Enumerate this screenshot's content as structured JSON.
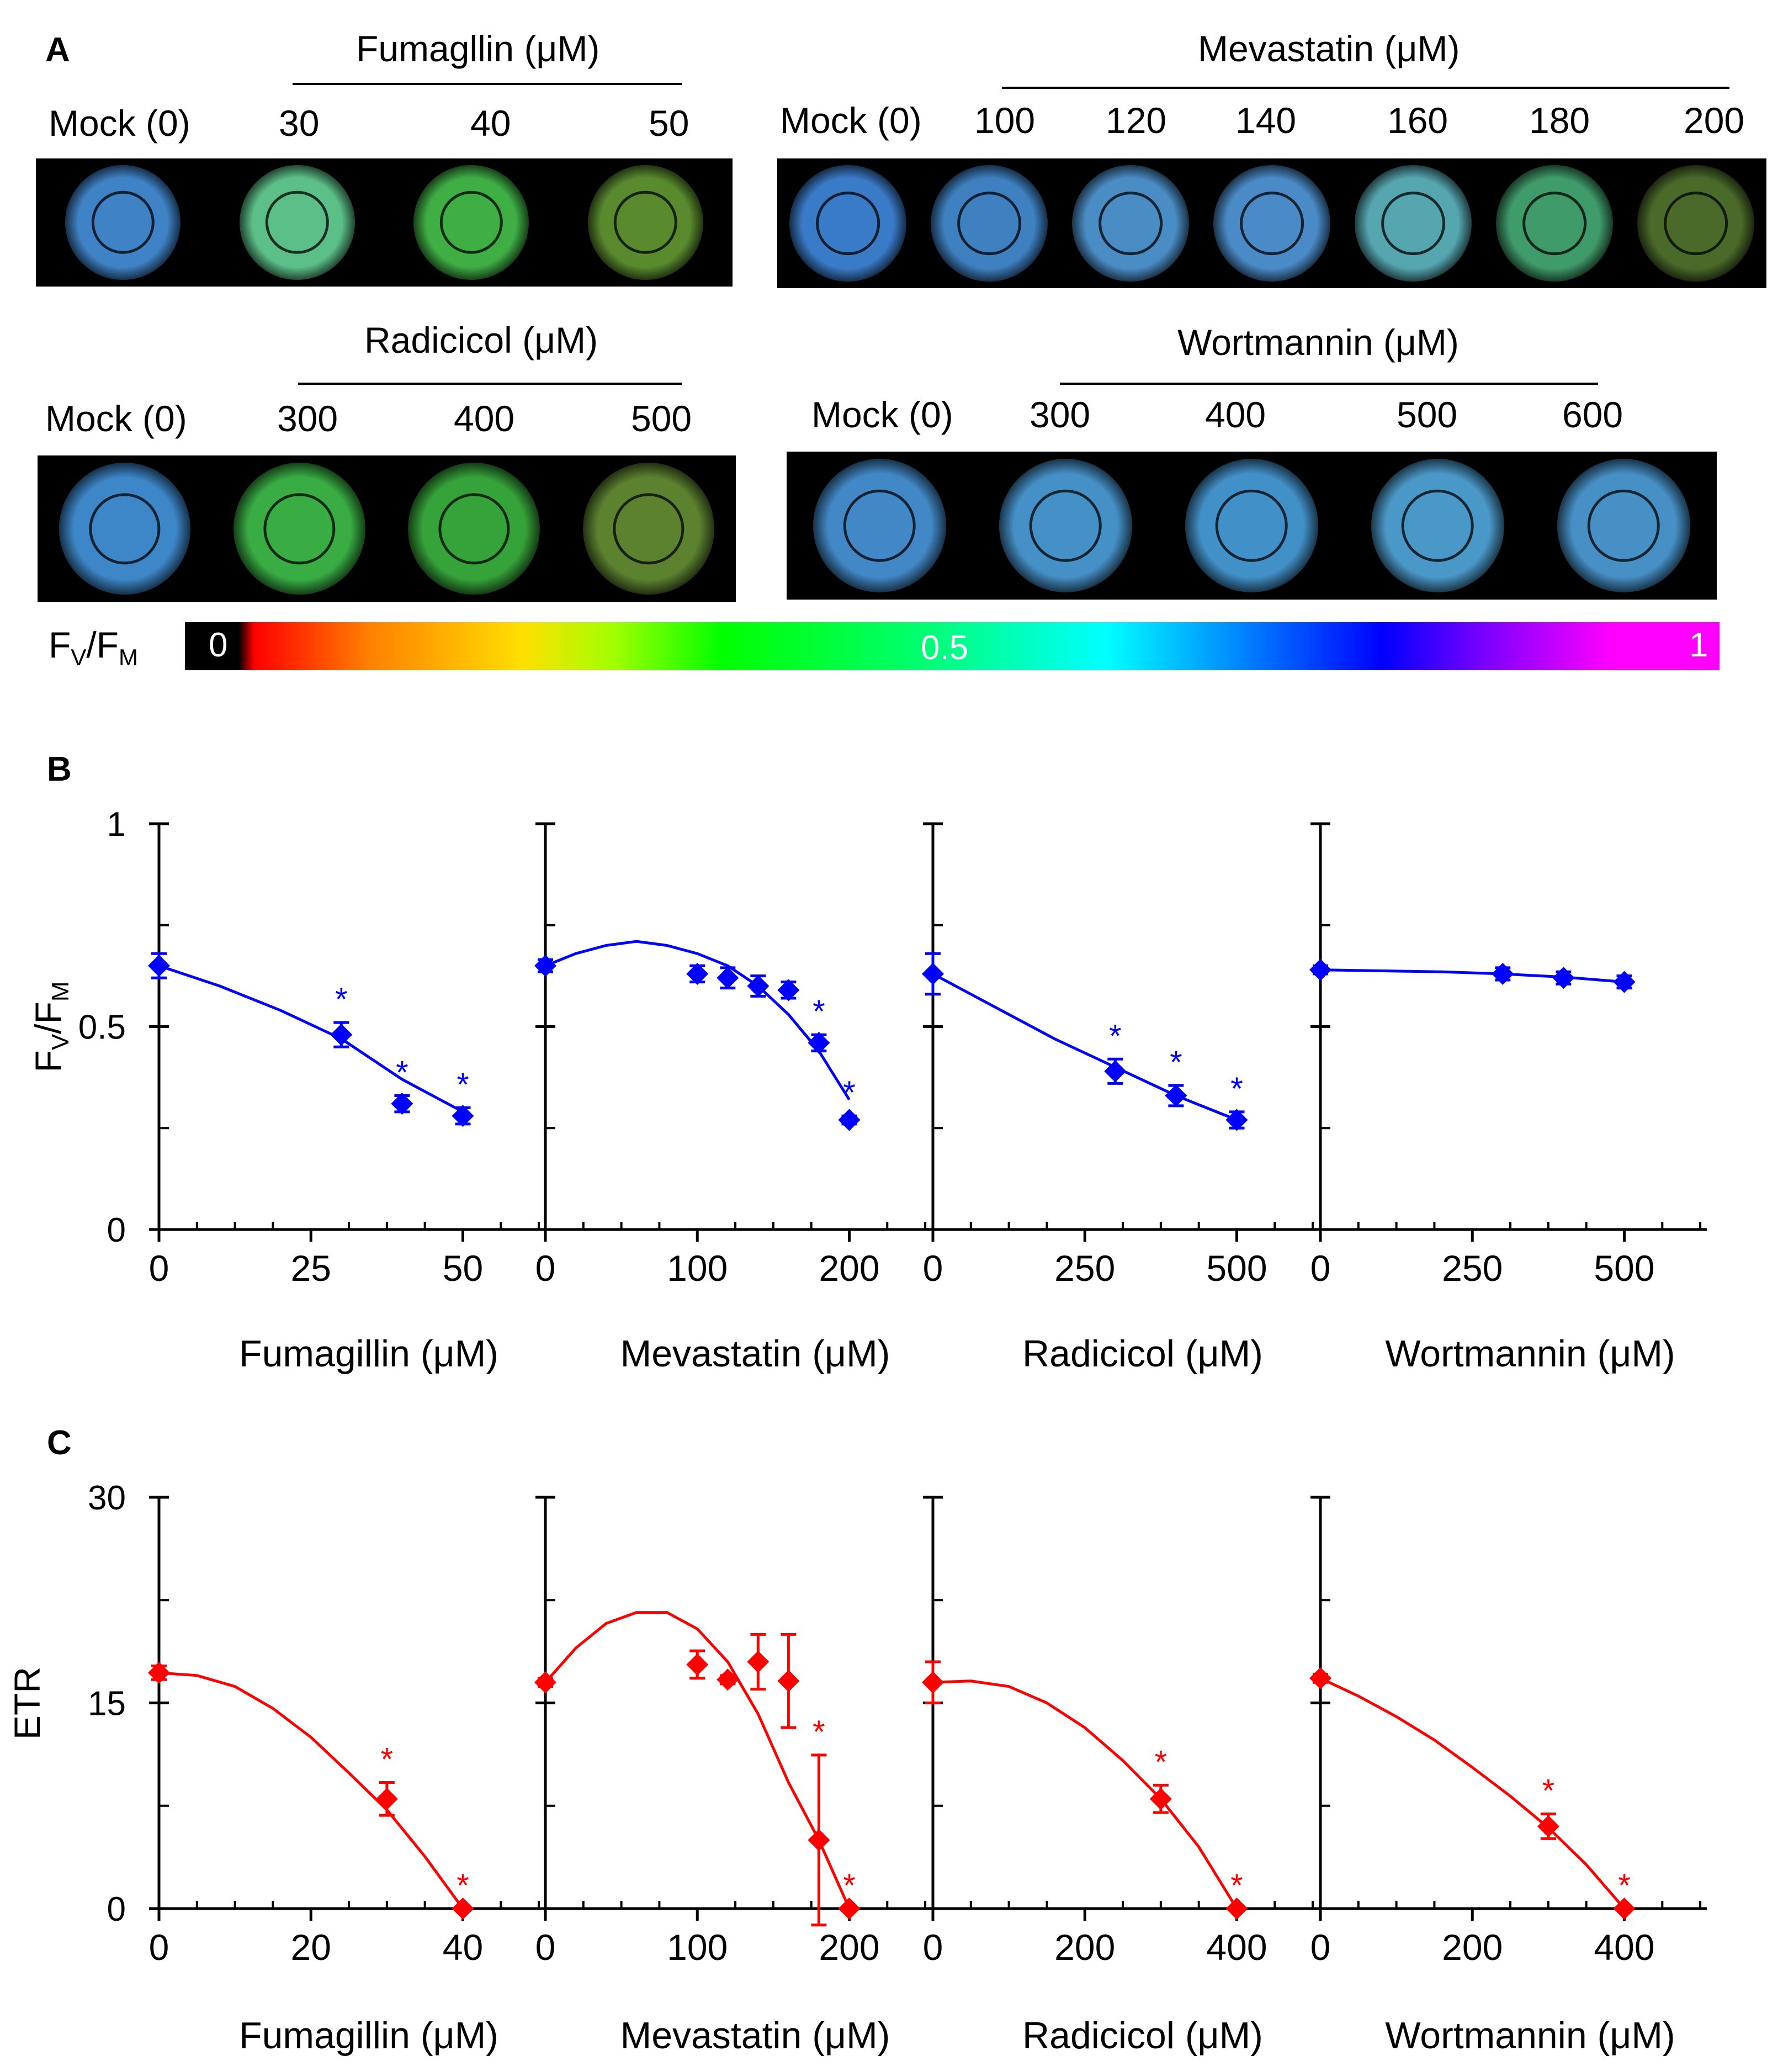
{
  "panel_a": {
    "label": "A",
    "groups": [
      {
        "compound_label": "Fumagllin (μM)",
        "mock_label": "Mock (0)",
        "doses": [
          "30",
          "40",
          "50"
        ],
        "well_colors": [
          "#3f82c6",
          "#5cbf88",
          "#3fae45",
          "#5a8a2e"
        ]
      },
      {
        "compound_label": "Mevastatin (μM)",
        "mock_label": "Mock (0)",
        "doses": [
          "100",
          "120",
          "140",
          "160",
          "180",
          "200"
        ],
        "well_colors": [
          "#3a7bc8",
          "#3e80c0",
          "#4a8cc4",
          "#4a8ac6",
          "#56a6b0",
          "#3f9b6a",
          "#4a6a2a"
        ]
      },
      {
        "compound_label": "Radicicol (μM)",
        "mock_label": "Mock (0)",
        "doses": [
          "300",
          "400",
          "500"
        ],
        "well_colors": [
          "#3d86c8",
          "#39ad44",
          "#36a23a",
          "#5c8230"
        ]
      },
      {
        "compound_label": "Wortmannin (μM)",
        "mock_label": "Mock (0)",
        "doses": [
          "300",
          "400",
          "500",
          "600"
        ],
        "well_colors": [
          "#4288c6",
          "#4590c6",
          "#4290c8",
          "#4a98c8",
          "#4690c6"
        ]
      }
    ],
    "colorbar": {
      "label": "FV/FM",
      "ticks": [
        "0",
        "0.5",
        "1"
      ]
    }
  },
  "chart_data": [
    {
      "panel": "B",
      "type": "scatter",
      "ylabel": "FV/FM",
      "ylim": [
        0,
        1
      ],
      "xlabel": "Fumagillin (μM)",
      "xlim": [
        0,
        60
      ],
      "xticks": [
        "0",
        "25",
        "50"
      ],
      "yticks": [
        "0",
        "0.5",
        "1"
      ],
      "color": "#0000ff",
      "x": [
        0,
        30,
        40,
        50
      ],
      "y": [
        0.65,
        0.48,
        0.31,
        0.28
      ],
      "err": [
        0.03,
        0.03,
        0.02,
        0.02
      ],
      "sig": [
        false,
        true,
        true,
        true
      ],
      "fit": [
        [
          0,
          0.65
        ],
        [
          10,
          0.6
        ],
        [
          20,
          0.54
        ],
        [
          30,
          0.47
        ],
        [
          40,
          0.37
        ],
        [
          50,
          0.29
        ]
      ]
    },
    {
      "panel": "B",
      "type": "scatter",
      "xlabel": "Mevastatin (μM)",
      "xlim": [
        0,
        240
      ],
      "xticks": [
        "0",
        "100",
        "200"
      ],
      "color": "#0000ff",
      "x": [
        0,
        100,
        120,
        140,
        160,
        180,
        200
      ],
      "y": [
        0.65,
        0.63,
        0.62,
        0.6,
        0.59,
        0.46,
        0.27
      ],
      "err": [
        0.015,
        0.02,
        0.025,
        0.025,
        0.02,
        0.02,
        0.01
      ],
      "sig": [
        false,
        false,
        false,
        false,
        false,
        true,
        true
      ],
      "fit": [
        [
          0,
          0.65
        ],
        [
          20,
          0.68
        ],
        [
          40,
          0.7
        ],
        [
          60,
          0.71
        ],
        [
          80,
          0.7
        ],
        [
          100,
          0.68
        ],
        [
          120,
          0.65
        ],
        [
          140,
          0.6
        ],
        [
          160,
          0.53
        ],
        [
          180,
          0.44
        ],
        [
          200,
          0.32
        ]
      ]
    },
    {
      "panel": "B",
      "type": "scatter",
      "xlabel": "Radicicol (μM)",
      "xlim": [
        0,
        600
      ],
      "xticks": [
        "0",
        "250",
        "500"
      ],
      "color": "#0000ff",
      "x": [
        0,
        300,
        400,
        500
      ],
      "y": [
        0.63,
        0.39,
        0.33,
        0.27
      ],
      "err": [
        0.05,
        0.03,
        0.025,
        0.02
      ],
      "sig": [
        false,
        true,
        true,
        true
      ],
      "fit": [
        [
          0,
          0.63
        ],
        [
          100,
          0.55
        ],
        [
          200,
          0.47
        ],
        [
          300,
          0.4
        ],
        [
          400,
          0.33
        ],
        [
          500,
          0.27
        ]
      ]
    },
    {
      "panel": "B",
      "type": "scatter",
      "xlabel": "Wortmannin (μM)",
      "xlim": [
        0,
        600
      ],
      "xticks": [
        "0",
        "250",
        "500"
      ],
      "color": "#0000ff",
      "x": [
        0,
        300,
        400,
        500
      ],
      "y": [
        0.64,
        0.63,
        0.62,
        0.61
      ],
      "err": [
        0.01,
        0.015,
        0.015,
        0.015
      ],
      "sig": [
        false,
        false,
        false,
        false
      ],
      "fit": [
        [
          0,
          0.64
        ],
        [
          200,
          0.635
        ],
        [
          300,
          0.63
        ],
        [
          400,
          0.622
        ],
        [
          500,
          0.61
        ]
      ]
    },
    {
      "panel": "C",
      "type": "scatter",
      "ylabel": "ETR",
      "ylim": [
        0,
        30
      ],
      "xlabel": "Fumagillin (μM)",
      "xlim": [
        0,
        48
      ],
      "xticks": [
        "0",
        "20",
        "40"
      ],
      "yticks": [
        "0",
        "15",
        "30"
      ],
      "color": "#ff0000",
      "x": [
        0,
        30,
        40
      ],
      "y": [
        17.2,
        8.0,
        0
      ],
      "err": [
        0.5,
        1.2,
        0
      ],
      "sig": [
        false,
        true,
        true
      ],
      "fit": [
        [
          0,
          17.2
        ],
        [
          5,
          17
        ],
        [
          10,
          16.2
        ],
        [
          15,
          14.6
        ],
        [
          20,
          12.5
        ],
        [
          25,
          9.9
        ],
        [
          30,
          7.2
        ],
        [
          35,
          3.8
        ],
        [
          40,
          0
        ]
      ]
    },
    {
      "panel": "C",
      "type": "scatter",
      "xlabel": "Mevastatin (μM)",
      "xlim": [
        0,
        240
      ],
      "xticks": [
        "0",
        "100",
        "200"
      ],
      "color": "#ff0000",
      "x": [
        0,
        100,
        120,
        140,
        160,
        180,
        200
      ],
      "y": [
        16.5,
        17.8,
        16.7,
        18,
        16.6,
        5,
        0
      ],
      "err": [
        0.3,
        1.0,
        0.3,
        2.0,
        3.4,
        6.2,
        0
      ],
      "sig": [
        false,
        false,
        false,
        false,
        false,
        true,
        true
      ],
      "fit": [
        [
          0,
          16.5
        ],
        [
          20,
          19
        ],
        [
          40,
          20.8
        ],
        [
          60,
          21.6
        ],
        [
          80,
          21.6
        ],
        [
          100,
          20.4
        ],
        [
          120,
          18
        ],
        [
          140,
          14.2
        ],
        [
          160,
          9.2
        ],
        [
          180,
          5
        ],
        [
          200,
          0
        ]
      ]
    },
    {
      "panel": "C",
      "type": "scatter",
      "xlabel": "Radicicol (μM)",
      "xlim": [
        0,
        480
      ],
      "xticks": [
        "0",
        "200",
        "400"
      ],
      "color": "#ff0000",
      "x": [
        0,
        300,
        400
      ],
      "y": [
        16.5,
        8.0,
        0
      ],
      "err": [
        1.5,
        1.0,
        0
      ],
      "sig": [
        false,
        true,
        true
      ],
      "fit": [
        [
          0,
          16.5
        ],
        [
          50,
          16.6
        ],
        [
          100,
          16.2
        ],
        [
          150,
          15
        ],
        [
          200,
          13.2
        ],
        [
          250,
          10.8
        ],
        [
          300,
          8
        ],
        [
          350,
          4.5
        ],
        [
          400,
          0
        ]
      ]
    },
    {
      "panel": "C",
      "type": "scatter",
      "xlabel": "Wortmannin (μM)",
      "xlim": [
        0,
        480
      ],
      "xticks": [
        "0",
        "200",
        "400"
      ],
      "color": "#ff0000",
      "x": [
        0,
        300,
        400
      ],
      "y": [
        16.8,
        6.0,
        0
      ],
      "err": [
        0.3,
        0.9,
        0
      ],
      "sig": [
        false,
        true,
        true
      ],
      "fit": [
        [
          0,
          16.8
        ],
        [
          50,
          15.5
        ],
        [
          100,
          14
        ],
        [
          150,
          12.3
        ],
        [
          200,
          10.3
        ],
        [
          250,
          8.2
        ],
        [
          300,
          5.9
        ],
        [
          350,
          3.2
        ],
        [
          400,
          0
        ]
      ]
    }
  ],
  "panel_b_label": "B",
  "panel_c_label": "C",
  "sig_marker": "*"
}
